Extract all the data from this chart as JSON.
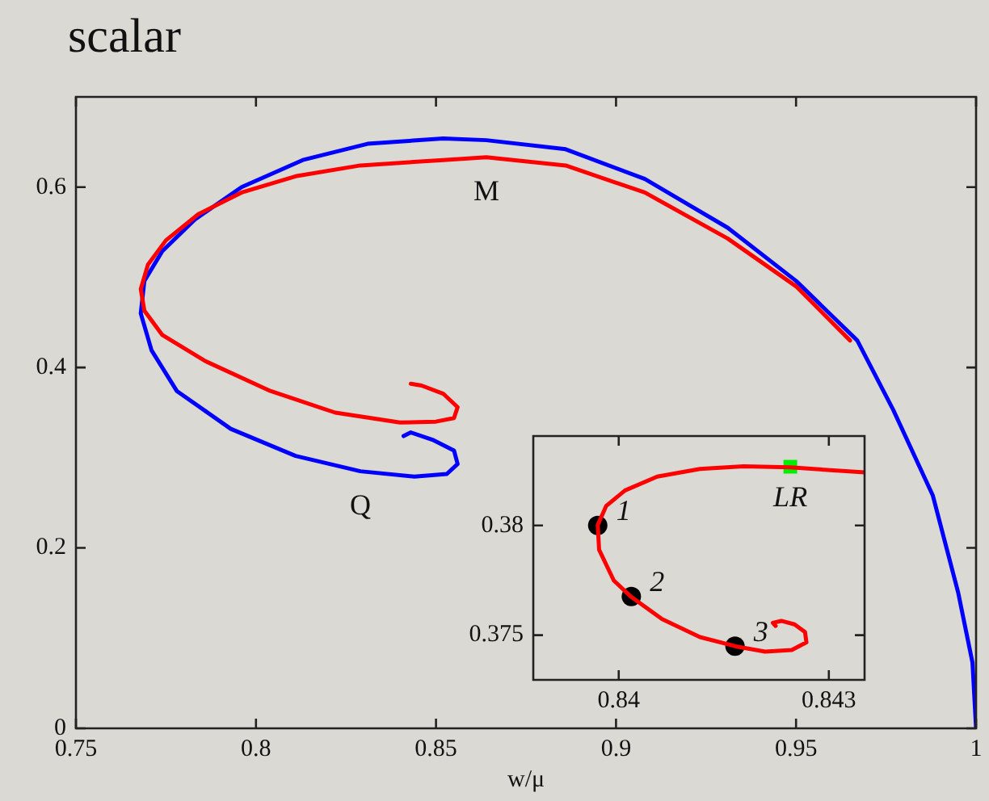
{
  "chart_data": [
    {
      "type": "line",
      "title": "scalar",
      "xlabel": "w/μ",
      "xlim": [
        0.75,
        1
      ],
      "xticks": [
        0.75,
        0.8,
        0.85,
        0.9,
        0.95,
        1
      ],
      "ylim": [
        0,
        0.7
      ],
      "yticks": [
        0,
        0.2,
        0.4,
        0.6
      ],
      "grid": false,
      "series": [
        {
          "color": "#ff0000",
          "x": [
            0.843,
            0.846,
            0.852,
            0.856,
            0.855,
            0.85,
            0.84,
            0.822,
            0.804,
            0.786,
            0.774,
            0.769,
            0.768,
            0.77,
            0.775,
            0.784,
            0.796,
            0.811,
            0.829,
            0.852,
            0.864,
            0.886,
            0.908,
            0.931,
            0.95,
            0.965
          ],
          "values": [
            0.382,
            0.38,
            0.371,
            0.356,
            0.344,
            0.34,
            0.339,
            0.35,
            0.374,
            0.407,
            0.436,
            0.463,
            0.487,
            0.514,
            0.541,
            0.57,
            0.594,
            0.612,
            0.624,
            0.63,
            0.633,
            0.624,
            0.594,
            0.543,
            0.49,
            0.43
          ]
        },
        {
          "color": "#0000ff",
          "x": [
            0.841,
            0.843,
            0.849,
            0.855,
            0.856,
            0.853,
            0.844,
            0.829,
            0.811,
            0.793,
            0.778,
            0.771,
            0.768,
            0.769,
            0.774,
            0.783,
            0.796,
            0.813,
            0.831,
            0.852,
            0.864,
            0.886,
            0.908,
            0.931,
            0.95,
            0.967,
            0.977,
            0.988,
            0.995,
            0.999,
            1.0
          ],
          "values": [
            0.324,
            0.328,
            0.32,
            0.308,
            0.293,
            0.282,
            0.279,
            0.285,
            0.302,
            0.332,
            0.374,
            0.419,
            0.46,
            0.496,
            0.529,
            0.564,
            0.6,
            0.63,
            0.648,
            0.654,
            0.652,
            0.642,
            0.609,
            0.555,
            0.496,
            0.43,
            0.353,
            0.258,
            0.151,
            0.073,
            0
          ]
        }
      ],
      "annotations": [
        {
          "text": "M",
          "x": 0.864,
          "y": 0.633
        },
        {
          "text": "Q",
          "x": 0.829,
          "y": 0.285
        }
      ]
    },
    {
      "type": "line",
      "xlim": [
        0.83878,
        0.84351
      ],
      "xticks": [
        0.84,
        0.843
      ],
      "ylim": [
        0.37296,
        0.38408
      ],
      "yticks": [
        0.375,
        0.38
      ],
      "grid": false,
      "series": [
        {
          "color": "#ff0000",
          "x": [
            0.84351,
            0.84245,
            0.84178,
            0.84116,
            0.84055,
            0.84009,
            0.83982,
            0.8397,
            0.83972,
            0.83993,
            0.84018,
            0.84062,
            0.84116,
            0.84167,
            0.84209,
            0.84247,
            0.84268,
            0.84266,
            0.84251,
            0.84232,
            0.8422,
            0.84224
          ],
          "values": [
            0.38242,
            0.38265,
            0.3827,
            0.38258,
            0.38223,
            0.3816,
            0.38089,
            0.38002,
            0.37889,
            0.37749,
            0.37674,
            0.37573,
            0.37491,
            0.37449,
            0.37425,
            0.37432,
            0.37467,
            0.37514,
            0.37549,
            0.37565,
            0.37556,
            0.37542
          ]
        },
        {
          "type": "scatter",
          "name": "1",
          "color": "#000000",
          "marker": "circle",
          "x": [
            0.8397
          ],
          "values": [
            0.38
          ]
        },
        {
          "type": "scatter",
          "name": "2",
          "color": "#000000",
          "marker": "circle",
          "x": [
            0.84018
          ],
          "values": [
            0.37676
          ]
        },
        {
          "type": "scatter",
          "name": "3",
          "color": "#000000",
          "marker": "circle",
          "x": [
            0.84166
          ],
          "values": [
            0.3745
          ]
        },
        {
          "type": "scatter",
          "name": "LR",
          "color": "#00ee00",
          "marker": "square",
          "x": [
            0.84245
          ],
          "values": [
            0.38268
          ]
        }
      ]
    }
  ]
}
